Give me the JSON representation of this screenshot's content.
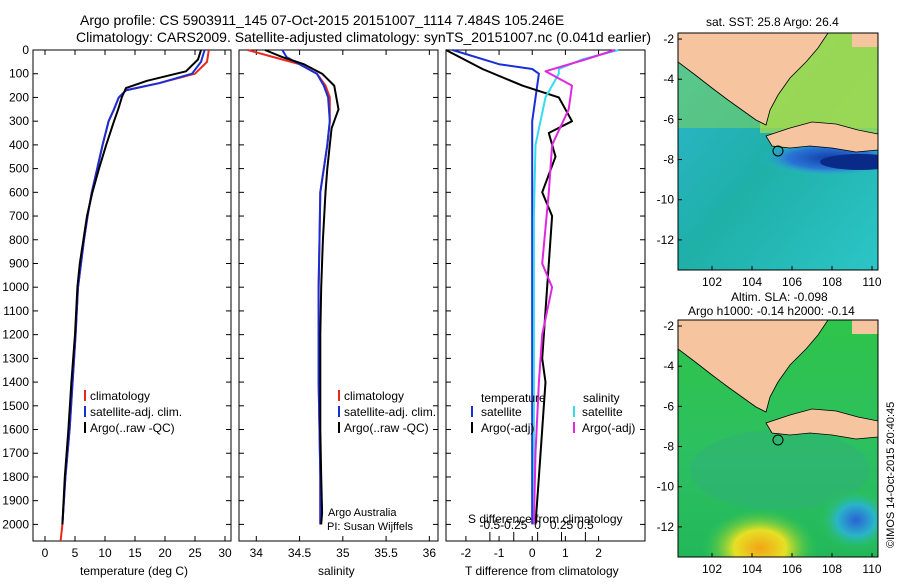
{
  "header": {
    "line1": "Argo profile: CS 5903911_145 07-Oct-2015 20151007_1114 7.484S 105.246E",
    "line2": "Climatology: CARS2009. Satellite-adjusted climatology: synTS_20151007.nc (0.041d earlier)"
  },
  "colors": {
    "climatology": "#e8281c",
    "satellite": "#1a2ed8",
    "argo": "#000000",
    "sat_salinity": "#33dcef",
    "argo_salinity": "#e028e0",
    "land": "#f6c49e"
  },
  "side_text": "©IMOS 14-Oct-2015 20:40:45",
  "chart_data": [
    {
      "type": "line",
      "id": "temperature",
      "xlabel": "temperature (deg C)",
      "ylabel": "",
      "xlim": [
        -2,
        31
      ],
      "ylim": [
        2070,
        0
      ],
      "xticks": [
        0,
        5,
        10,
        15,
        20,
        25,
        30
      ],
      "yticks": [
        0,
        100,
        200,
        300,
        400,
        500,
        600,
        700,
        800,
        900,
        1000,
        1100,
        1200,
        1300,
        1400,
        1500,
        1600,
        1700,
        1800,
        1900,
        2000
      ],
      "legend": {
        "position": "lower-left",
        "entries": [
          "climatology",
          "satellite-adj. clim.",
          "Argo(..raw -QC)"
        ]
      },
      "series": [
        {
          "name": "climatology",
          "color_key": "climatology",
          "x": [
            27.3,
            27.0,
            25.0,
            19.0,
            13.5,
            12.3,
            11.5,
            10.6,
            9.6,
            8.7,
            7.8,
            7.1,
            6.5,
            6.0,
            5.5,
            5.1,
            4.6,
            4.1,
            3.4,
            2.9,
            2.6
          ],
          "y": [
            0,
            50,
            100,
            140,
            170,
            200,
            250,
            300,
            400,
            500,
            600,
            700,
            800,
            900,
            1000,
            1200,
            1400,
            1600,
            1800,
            2000,
            2070
          ]
        },
        {
          "name": "satellite-adj. clim.",
          "color_key": "satellite",
          "x": [
            26.6,
            26.0,
            24.5,
            19.0,
            13.5,
            12.3,
            11.5,
            10.6,
            9.6,
            8.7,
            7.8,
            7.1,
            6.5,
            6.0,
            5.5,
            5.1,
            4.6,
            4.1,
            3.4,
            2.9
          ],
          "y": [
            0,
            50,
            100,
            140,
            170,
            200,
            250,
            300,
            400,
            500,
            600,
            700,
            800,
            900,
            1000,
            1200,
            1400,
            1600,
            1800,
            2000
          ]
        },
        {
          "name": "Argo(..raw -QC)",
          "color_key": "argo",
          "x": [
            26.0,
            25.5,
            23.5,
            17.0,
            13.5,
            12.8,
            12.2,
            11.5,
            10.2,
            9.0,
            7.9,
            7.0,
            6.4,
            5.8,
            5.4,
            5.0,
            4.4,
            3.9,
            3.3,
            2.9
          ],
          "y": [
            0,
            40,
            90,
            130,
            160,
            200,
            250,
            300,
            400,
            500,
            600,
            700,
            800,
            900,
            1000,
            1200,
            1400,
            1600,
            1800,
            2000
          ]
        }
      ]
    },
    {
      "type": "line",
      "id": "salinity",
      "xlabel": "salinity",
      "ylabel": "",
      "xlim": [
        33.8,
        36.1
      ],
      "ylim": [
        2070,
        0
      ],
      "xticks": [
        34,
        34.5,
        35,
        35.5,
        36
      ],
      "legend": {
        "position": "lower-right",
        "entries": [
          "climatology",
          "satellite-adj. clim.",
          "Argo(..raw -QC)"
        ]
      },
      "annotations": [
        "Argo Australia",
        "PI: Susan Wijffels"
      ],
      "series": [
        {
          "name": "climatology",
          "color_key": "climatology",
          "x": [
            33.9,
            34.2,
            34.5,
            34.7,
            34.8,
            34.85,
            34.85,
            34.82,
            34.78,
            34.74,
            34.73,
            34.72,
            34.72,
            34.72,
            34.73,
            34.74,
            34.74
          ],
          "y": [
            0,
            30,
            60,
            100,
            150,
            200,
            300,
            400,
            500,
            600,
            800,
            1000,
            1200,
            1400,
            1600,
            1800,
            2000
          ]
        },
        {
          "name": "satellite-adj. clim.",
          "color_key": "satellite",
          "x": [
            34.3,
            34.35,
            34.5,
            34.7,
            34.78,
            34.83,
            34.85,
            34.82,
            34.78,
            34.74,
            34.73,
            34.72,
            34.72,
            34.72,
            34.73,
            34.74,
            34.74
          ],
          "y": [
            0,
            30,
            60,
            100,
            150,
            200,
            300,
            400,
            500,
            600,
            800,
            1000,
            1200,
            1400,
            1600,
            1800,
            2000
          ]
        },
        {
          "name": "Argo(..raw -QC)",
          "color_key": "argo",
          "x": [
            34.1,
            34.3,
            34.55,
            34.76,
            34.9,
            34.95,
            34.87,
            34.85,
            34.82,
            34.8,
            34.77,
            34.75,
            34.74,
            34.74,
            34.74,
            34.75,
            34.76,
            34.75
          ],
          "y": [
            0,
            30,
            60,
            100,
            150,
            250,
            330,
            400,
            500,
            600,
            800,
            1000,
            1200,
            1400,
            1600,
            1800,
            1950,
            2000
          ]
        }
      ]
    },
    {
      "type": "line",
      "id": "difference",
      "xlabel": "T difference from climatology",
      "xlabel_top": "S difference from climatology",
      "ylabel": "",
      "xlim": [
        -2.6,
        3.4
      ],
      "ylim": [
        2070,
        0
      ],
      "xticks": [
        -2,
        -1,
        0,
        1,
        2
      ],
      "s_ticks": [
        -0.5,
        -0.25,
        0,
        0.25,
        0.5
      ],
      "legend": {
        "position": "lower-middle",
        "headers": [
          "temperature",
          "salinity"
        ],
        "entries": [
          "satellite",
          "Argo(-adj)",
          "satellite",
          "Argo(-adj)"
        ]
      },
      "series": [
        {
          "name": "temperature satellite",
          "color_key": "satellite",
          "x": [
            -2.4,
            -1.0,
            0.0,
            0.2,
            0.0,
            0.0,
            0.0,
            0.0,
            0.0,
            0.0
          ],
          "y": [
            0,
            60,
            80,
            100,
            300,
            600,
            1000,
            1400,
            1800,
            2000
          ]
        },
        {
          "name": "temperature Argo(-adj)",
          "color_key": "argo",
          "x": [
            -2.6,
            -1.5,
            -0.3,
            0.8,
            1.2,
            0.5,
            0.7,
            0.3,
            0.6,
            0.5,
            0.4,
            0.3,
            0.4,
            0.3,
            0.2,
            0.1
          ],
          "y": [
            0,
            80,
            150,
            200,
            300,
            350,
            450,
            600,
            700,
            900,
            1100,
            1300,
            1400,
            1600,
            1800,
            2000
          ]
        },
        {
          "name": "salinity satellite",
          "color_key": "sat_salinity",
          "x": [
            2.6,
            1.5,
            0.8,
            0.8,
            0.4,
            0.1,
            0.05,
            0.05,
            0.05,
            0.05
          ],
          "y": [
            0,
            40,
            80,
            100,
            200,
            400,
            700,
            1000,
            1500,
            2000
          ]
        },
        {
          "name": "salinity Argo(-adj)",
          "color_key": "argo_salinity",
          "x": [
            2.5,
            1.6,
            0.4,
            1.2,
            1.1,
            0.6,
            0.5,
            0.3,
            0.6,
            0.3,
            0.2,
            0.1,
            0.05
          ],
          "y": [
            0,
            40,
            90,
            150,
            250,
            400,
            600,
            900,
            1000,
            1200,
            1400,
            1700,
            2000
          ]
        }
      ]
    },
    {
      "type": "heatmap",
      "id": "sst_map",
      "title": "sat. SST: 25.8  Argo: 26.4",
      "xlim": [
        100.3,
        110.3
      ],
      "ylim": [
        -13.5,
        -1.7
      ],
      "xticks": [
        102,
        104,
        106,
        108,
        110
      ],
      "yticks": [
        -2,
        -4,
        -6,
        -8,
        -10,
        -12
      ],
      "marker": {
        "lon": 105.246,
        "lat": -7.484
      }
    },
    {
      "type": "heatmap",
      "id": "sla_map",
      "title_lines": [
        "Altim. SLA: -0.098",
        "Argo h1000: -0.14 h2000: -0.14"
      ],
      "xlim": [
        100.3,
        110.3
      ],
      "ylim": [
        -13.5,
        -1.7
      ],
      "xticks": [
        102,
        104,
        106,
        108,
        110
      ],
      "yticks": [
        -2,
        -4,
        -6,
        -8,
        -10,
        -12
      ],
      "marker": {
        "lon": 105.246,
        "lat": -7.484
      }
    }
  ]
}
